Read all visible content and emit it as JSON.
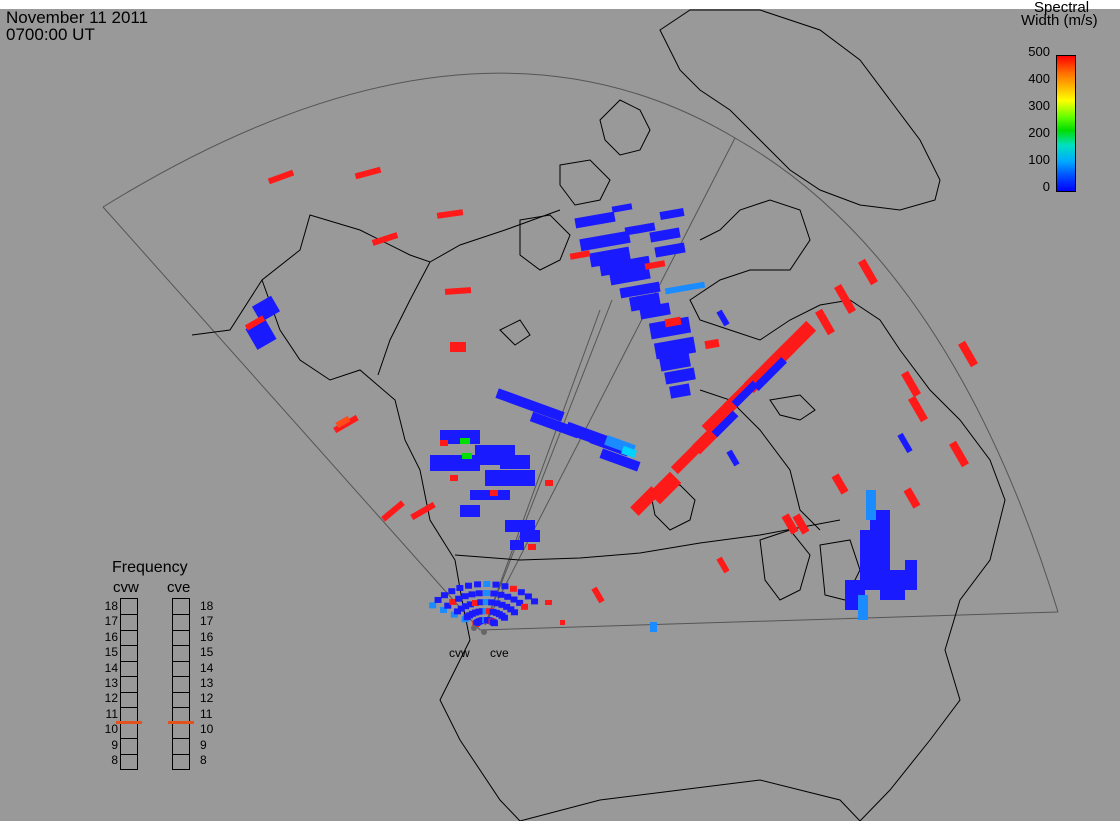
{
  "header": {
    "date": "November  11 2011",
    "time": "0700:00 UT"
  },
  "colorbar": {
    "title_line1": "Spectral",
    "title_line2": "Width (m/s)",
    "ticks": [
      "500",
      "400",
      "300",
      "200",
      "100",
      "0"
    ],
    "range": [
      0,
      500
    ],
    "colors": [
      "#0000ff",
      "#00aaff",
      "#00dd00",
      "#ffff00",
      "#ff6a00",
      "#ff0000"
    ]
  },
  "frequency_panel": {
    "title": "Frequency",
    "radars": [
      {
        "name": "cvw",
        "value_mhz": 10.5
      },
      {
        "name": "cve",
        "value_mhz": 10.5
      }
    ],
    "scale": [
      "18",
      "17",
      "16",
      "15",
      "14",
      "13",
      "12",
      "11",
      "10",
      "9",
      "8"
    ],
    "marker_color": "#e2521d"
  },
  "map": {
    "background": "#999999",
    "radar_sites": [
      {
        "label": "cvw",
        "color": "#666666"
      },
      {
        "label": "cve",
        "color": "#666666"
      }
    ],
    "palette": {
      "blue": "#1a1aff",
      "deep": "#0000ff",
      "light": "#1a8cff",
      "cyan": "#00d2ff",
      "green": "#00e000",
      "red": "#ff1a1a",
      "orange": "#ff4a1a"
    }
  }
}
